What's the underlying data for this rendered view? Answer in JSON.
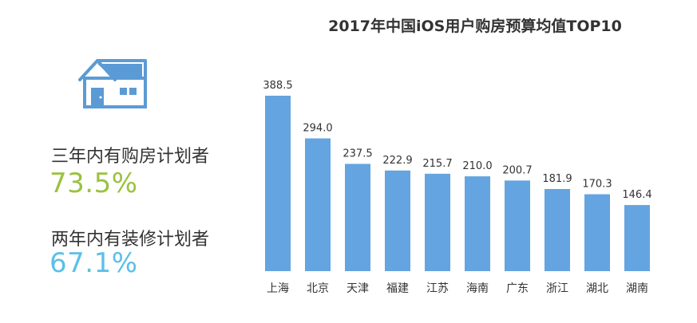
{
  "stats": [
    {
      "label": "三年内有购房计划者",
      "value": "73.5%",
      "color": "#9ac23c"
    },
    {
      "label": "两年内有装修计划者",
      "value": "67.1%",
      "color": "#5bc0e8"
    }
  ],
  "icons": {
    "house": "house-icon"
  },
  "colors": {
    "bar": "#64a4e0",
    "house": "#5b9bd5",
    "text": "#333333"
  },
  "chart_data": {
    "type": "bar",
    "title": "2017年中国iOS用户购房预算均值TOP10",
    "categories": [
      "上海",
      "北京",
      "天津",
      "福建",
      "江苏",
      "海南",
      "广东",
      "浙江",
      "湖北",
      "湖南"
    ],
    "values": [
      388.5,
      294.0,
      237.5,
      222.9,
      215.7,
      210.0,
      200.7,
      181.9,
      170.3,
      146.4
    ],
    "value_labels": [
      "388.5",
      "294.0",
      "237.5",
      "222.9",
      "215.7",
      "210.0",
      "200.7",
      "181.9",
      "170.3",
      "146.4"
    ],
    "ylim": [
      0,
      388.5
    ],
    "grid": false,
    "legend": "none"
  }
}
